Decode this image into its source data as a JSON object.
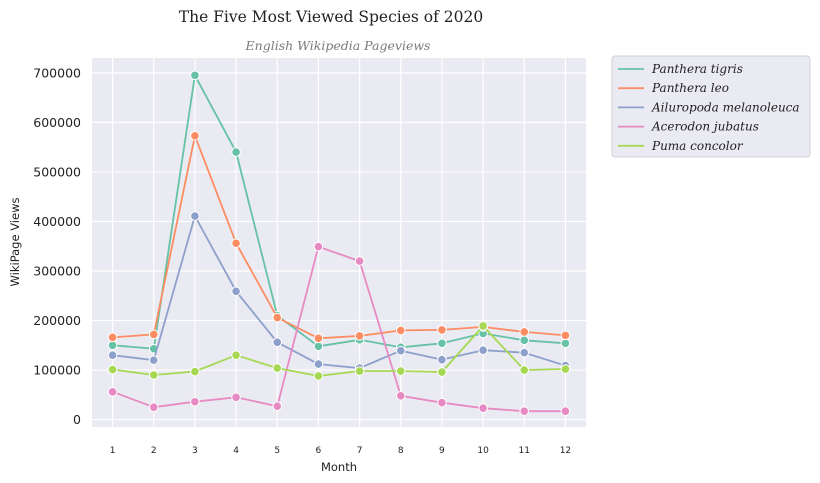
{
  "chart_data": {
    "type": "line",
    "title": "The Five Most Viewed Species of 2020",
    "subtitle": "English Wikipedia Pageviews",
    "xlabel": "Month",
    "ylabel": "WikiPage Views",
    "x": [
      1,
      2,
      3,
      4,
      5,
      6,
      7,
      8,
      9,
      10,
      11,
      12
    ],
    "xtick_labels": [
      "1",
      "2",
      "3",
      "4",
      "5",
      "6",
      "7",
      "8",
      "9",
      "10",
      "11",
      "12"
    ],
    "ylim": [
      -15000,
      730000
    ],
    "yticks": [
      0,
      100000,
      200000,
      300000,
      400000,
      500000,
      600000,
      700000
    ],
    "ytick_labels": [
      "0",
      "100000",
      "200000",
      "300000",
      "400000",
      "500000",
      "600000",
      "700000"
    ],
    "grid": true,
    "legend_position": "outside-upper-right",
    "series": [
      {
        "name": "Panthera tigris",
        "color": "#66c2a5",
        "values": [
          150000,
          143000,
          695000,
          540000,
          210000,
          148000,
          161000,
          146000,
          154000,
          174000,
          160000,
          154000
        ]
      },
      {
        "name": "Panthera leo",
        "color": "#fc8d62",
        "values": [
          166000,
          172000,
          573000,
          356000,
          206000,
          164000,
          169000,
          180000,
          181000,
          187000,
          177000,
          170000
        ]
      },
      {
        "name": "Ailuropoda melanoleuca",
        "color": "#8da0cb",
        "values": [
          130000,
          120000,
          411000,
          259000,
          156000,
          112000,
          104000,
          139000,
          121000,
          140000,
          135000,
          109000
        ]
      },
      {
        "name": "Acerodon jubatus",
        "color": "#e78ac3",
        "values": [
          56000,
          25000,
          36000,
          45000,
          27000,
          349000,
          320000,
          48000,
          34000,
          23000,
          17000,
          17000
        ]
      },
      {
        "name": "Puma concolor",
        "color": "#a6d854",
        "values": [
          101000,
          90000,
          97000,
          130000,
          104000,
          88000,
          98000,
          98000,
          96000,
          189000,
          100000,
          102000
        ]
      }
    ]
  }
}
